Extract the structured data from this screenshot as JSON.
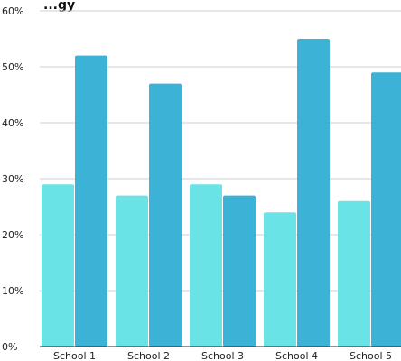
{
  "chart_data": {
    "type": "bar",
    "title": "...gy",
    "categories": [
      "School 1",
      "School 2",
      "School 3",
      "School 4",
      "School 5"
    ],
    "series": [
      {
        "values": [
          29,
          27,
          29,
          24,
          26
        ],
        "color": "#6ae3e6"
      },
      {
        "values": [
          52,
          47,
          27,
          55,
          49
        ],
        "color": "#3cb3d6"
      }
    ],
    "ylim": [
      0,
      60
    ],
    "yticks": [
      0,
      10,
      20,
      30,
      40,
      50,
      60
    ],
    "ytick_labels": [
      "0%",
      "10%",
      "20%",
      "30%",
      "40%",
      "50%",
      "60%"
    ],
    "grid": true,
    "legend": "none"
  }
}
